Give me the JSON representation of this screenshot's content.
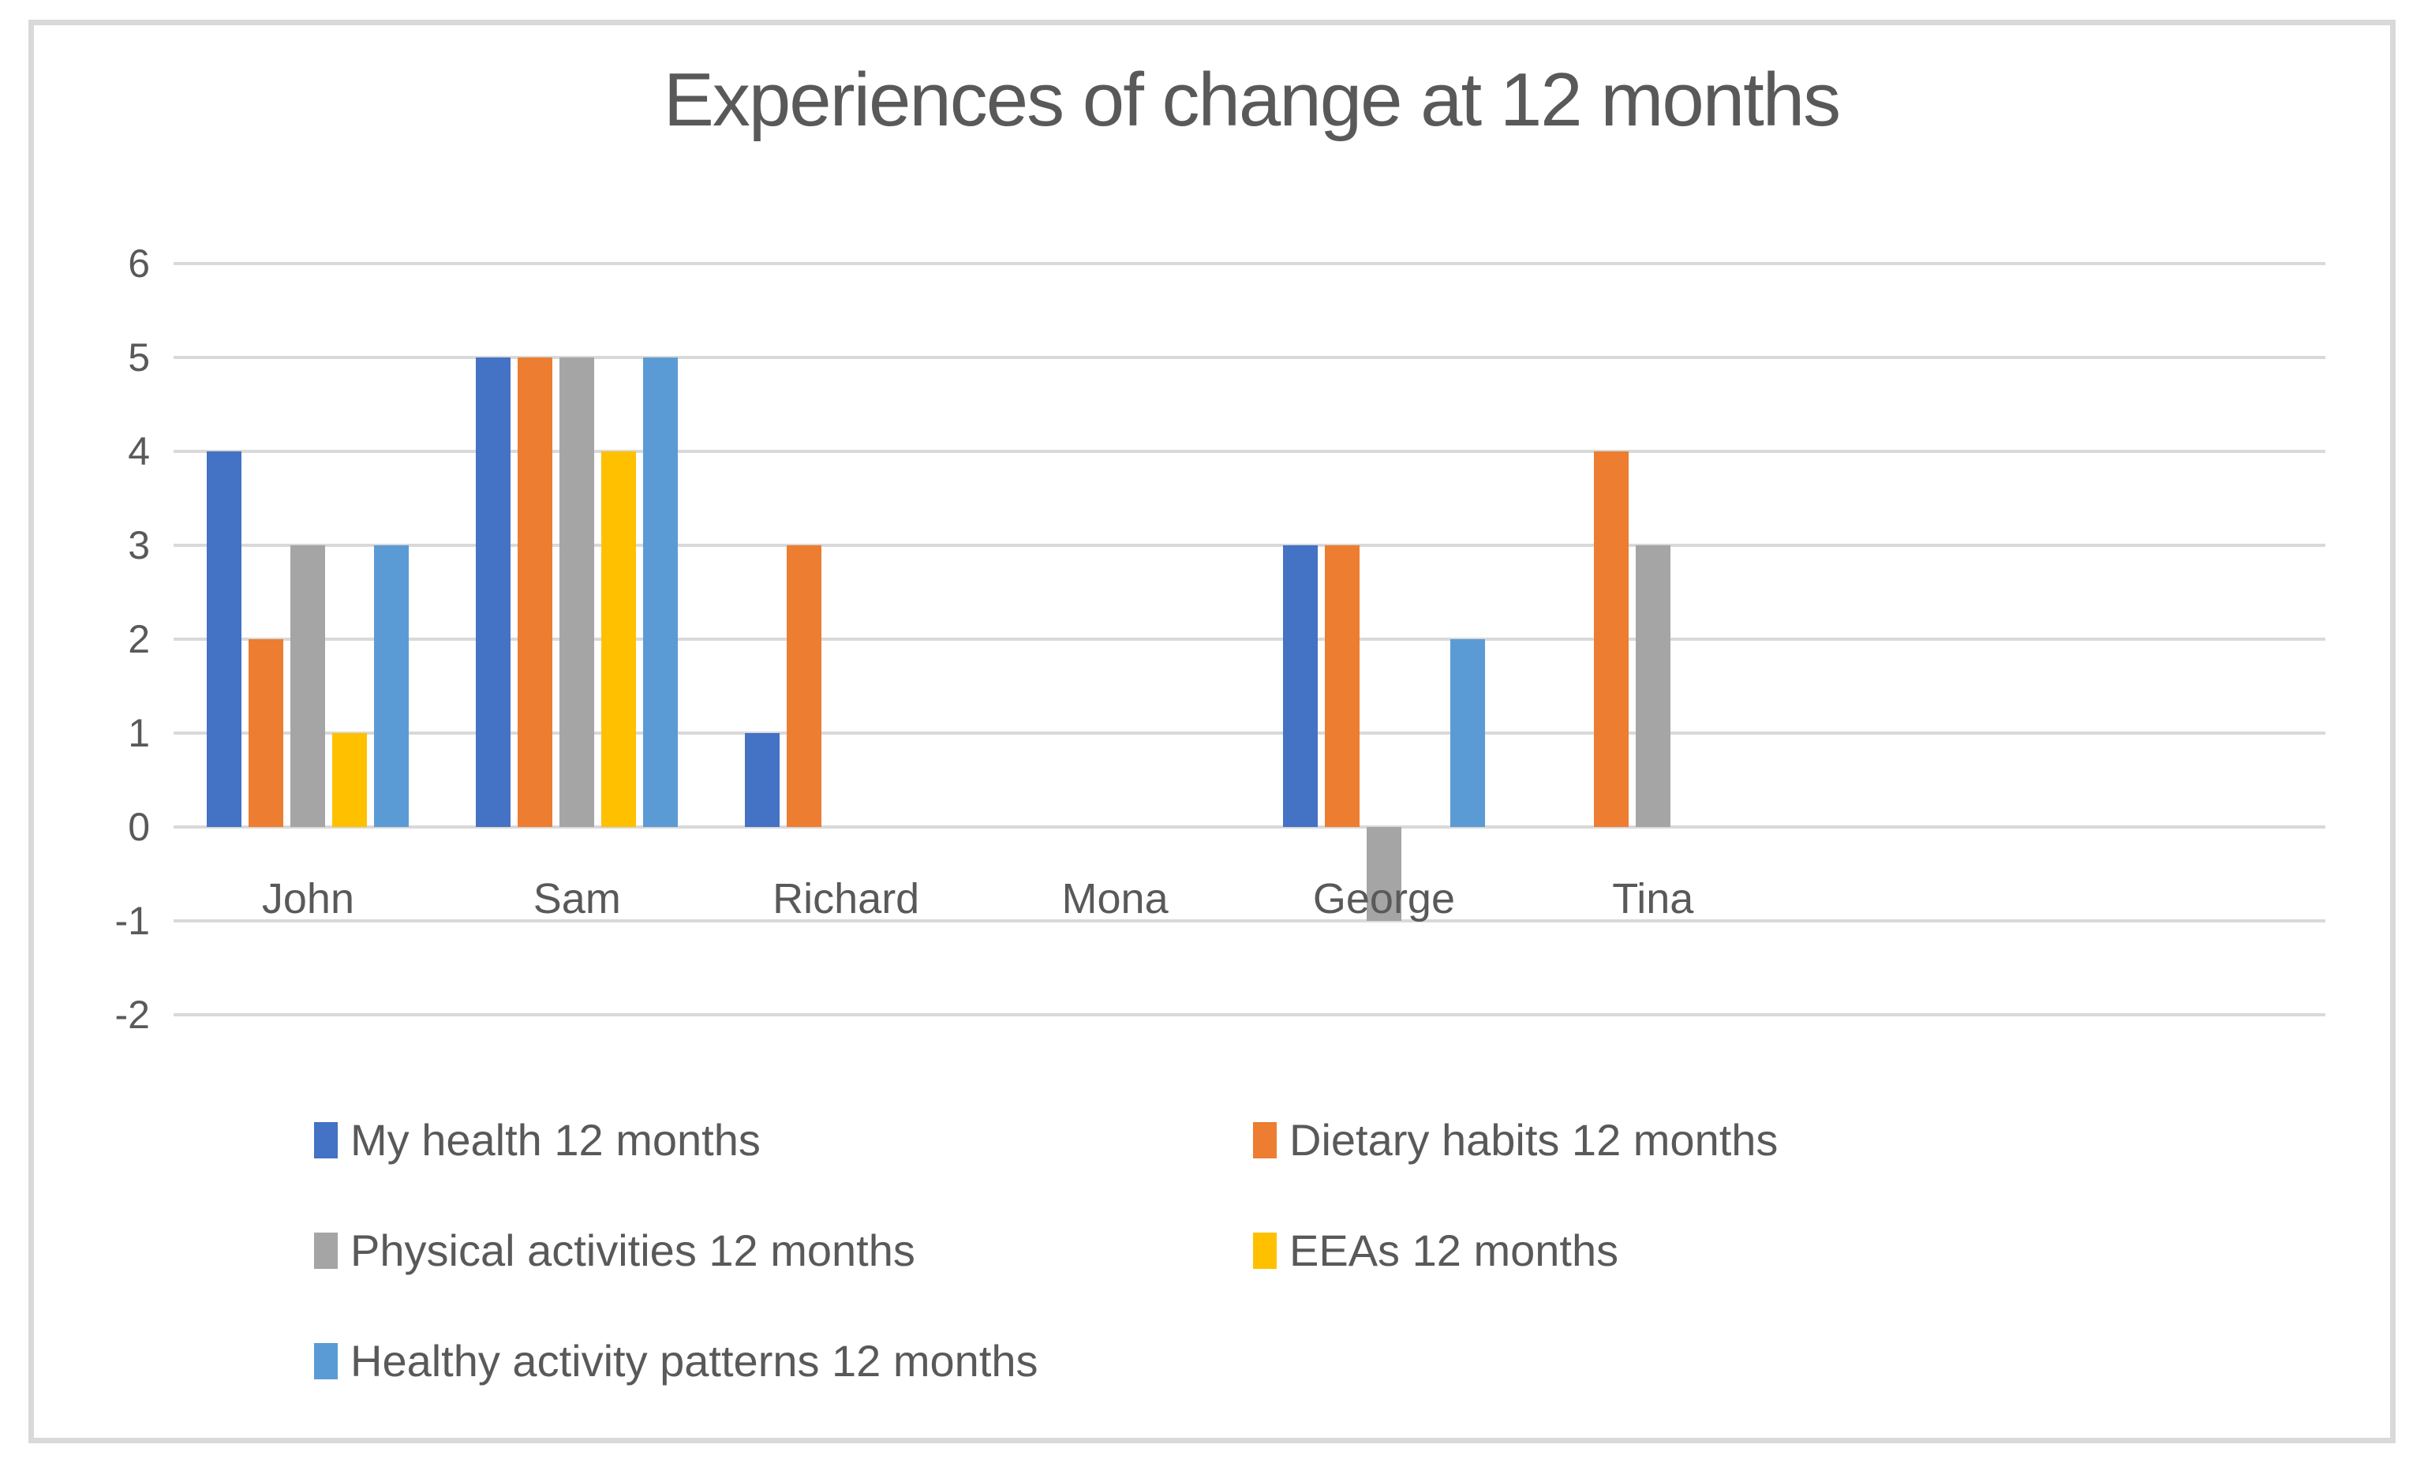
{
  "chart_data": {
    "type": "bar",
    "title": "Experiences of change at 12 months",
    "categories": [
      "John",
      "Sam",
      "Richard",
      "Mona",
      "George",
      "Tina"
    ],
    "series": [
      {
        "name": "My health 12 months",
        "color": "#4472C4",
        "values": [
          4,
          5,
          1,
          0,
          3,
          0
        ]
      },
      {
        "name": "Dietary habits 12 months",
        "color": "#ED7D31",
        "values": [
          2,
          5,
          3,
          0,
          3,
          4
        ]
      },
      {
        "name": "Physical activities 12 months",
        "color": "#A5A5A5",
        "values": [
          3,
          5,
          0,
          0,
          -1,
          3
        ]
      },
      {
        "name": "EEAs 12 months",
        "color": "#FFC000",
        "values": [
          1,
          4,
          0,
          0,
          0,
          0
        ]
      },
      {
        "name": "Healthy activity patterns 12 months",
        "color": "#5B9BD5",
        "values": [
          3,
          5,
          0,
          0,
          2,
          0
        ]
      }
    ],
    "ylim": [
      -2,
      6
    ],
    "yticks": [
      6,
      5,
      4,
      3,
      2,
      1,
      0,
      -1,
      -2
    ],
    "xlabel": "",
    "ylabel": "",
    "grid": "horizontal",
    "legend_position": "bottom, two columns, rows: [My health | Dietary habits], [Physical activities | EEAs], [Healthy activity patterns]",
    "layout_hints": {
      "category_slots": 8,
      "trailing_empty_slots": 2,
      "bars_baseline": "zero line; negative bars extend below category labels"
    },
    "colors": {
      "axis_text": "#595959",
      "title_text": "#595959",
      "gridline": "#D9D9D9",
      "frame_border": "#D9D9D9",
      "background": "#FFFFFF"
    }
  }
}
